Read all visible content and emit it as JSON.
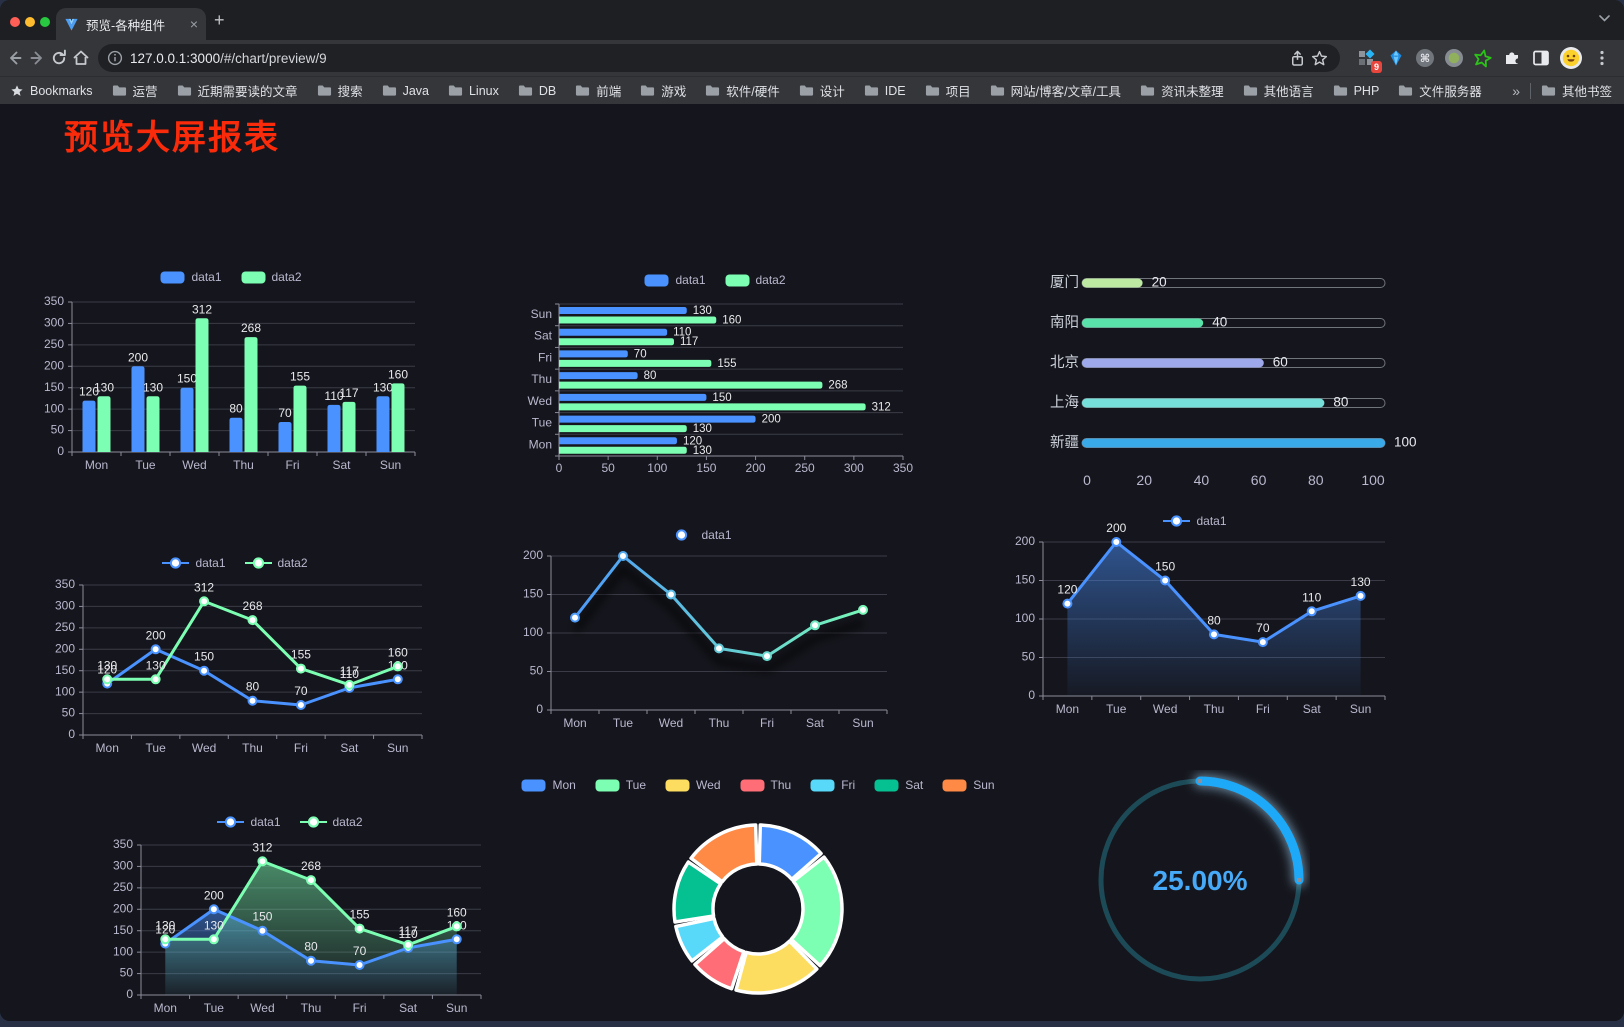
{
  "browser": {
    "tab": {
      "title": "预览-各种组件",
      "close_glyph": "×",
      "new_tab_glyph": "+"
    },
    "url": {
      "host": "127.0.0.1:3000",
      "path": "/#/chart/preview/9"
    },
    "extensions_badge": "9",
    "bookmarks": {
      "label": "Bookmarks",
      "items": [
        "运营",
        "近期需要读的文章",
        "搜索",
        "Java",
        "Linux",
        "DB",
        "前端",
        "游戏",
        "软件/硬件",
        "设计",
        "IDE",
        "项目",
        "网站/博客/文章/工具",
        "资讯未整理",
        "其他语言",
        "PHP",
        "文件服务器"
      ],
      "overflow_glyph": "»",
      "other_label": "其他书签"
    }
  },
  "page": {
    "title": "预览大屏报表",
    "title_color": "#fa2b0a"
  },
  "chart_data": [
    {
      "id": "c1",
      "type": "bar",
      "categories": [
        "Mon",
        "Tue",
        "Wed",
        "Thu",
        "Fri",
        "Sat",
        "Sun"
      ],
      "series": [
        {
          "name": "data1",
          "color": "#4992ff",
          "values": [
            120,
            200,
            150,
            80,
            70,
            110,
            130
          ]
        },
        {
          "name": "data2",
          "color": "#7cffb2",
          "values": [
            130,
            130,
            312,
            268,
            155,
            117,
            160
          ]
        }
      ],
      "ylim": [
        0,
        350
      ],
      "ystep": 50,
      "grid": true,
      "legend_position": "top",
      "labels": true
    },
    {
      "id": "c2",
      "type": "bar-horizontal",
      "categories": [
        "Mon",
        "Tue",
        "Wed",
        "Thu",
        "Fri",
        "Sat",
        "Sun"
      ],
      "series": [
        {
          "name": "data1",
          "color": "#4992ff",
          "values": [
            120,
            200,
            150,
            80,
            70,
            110,
            130
          ]
        },
        {
          "name": "data2",
          "color": "#7cffb2",
          "values": [
            130,
            130,
            312,
            268,
            155,
            117,
            160
          ]
        }
      ],
      "xlim": [
        0,
        350
      ],
      "xstep": 50,
      "grid": true,
      "legend_position": "top",
      "labels": true
    },
    {
      "id": "c3",
      "type": "progress",
      "items": [
        {
          "label": "厦门",
          "value": 20,
          "color": "#bee9a3"
        },
        {
          "label": "南阳",
          "value": 40,
          "color": "#59e3ab"
        },
        {
          "label": "北京",
          "value": 60,
          "color": "#9ea9ec"
        },
        {
          "label": "上海",
          "value": 80,
          "color": "#76dfd9"
        },
        {
          "label": "新疆",
          "value": 100,
          "color": "#3aa9e8"
        }
      ],
      "max": 100,
      "axis_ticks": [
        0,
        20,
        40,
        60,
        80,
        100
      ]
    },
    {
      "id": "c4",
      "type": "line",
      "categories": [
        "Mon",
        "Tue",
        "Wed",
        "Thu",
        "Fri",
        "Sat",
        "Sun"
      ],
      "series": [
        {
          "name": "data1",
          "color": "#4992ff",
          "values": [
            120,
            200,
            150,
            80,
            70,
            110,
            130
          ]
        },
        {
          "name": "data2",
          "color": "#7cffb2",
          "values": [
            130,
            130,
            312,
            268,
            155,
            117,
            160
          ]
        }
      ],
      "ylim": [
        0,
        350
      ],
      "ystep": 50,
      "legend_position": "top",
      "labels": true
    },
    {
      "id": "c5",
      "type": "line",
      "categories": [
        "Mon",
        "Tue",
        "Wed",
        "Thu",
        "Fri",
        "Sat",
        "Sun"
      ],
      "series": [
        {
          "name": "data1",
          "gradient": [
            "#4992ff",
            "#7cffb2"
          ],
          "values": [
            120,
            200,
            150,
            80,
            70,
            110,
            130
          ],
          "shadow": true
        }
      ],
      "ylim": [
        0,
        200
      ],
      "ystep": 50,
      "legend_position": "top",
      "labels": false
    },
    {
      "id": "c6",
      "type": "line",
      "categories": [
        "Mon",
        "Tue",
        "Wed",
        "Thu",
        "Fri",
        "Sat",
        "Sun"
      ],
      "series": [
        {
          "name": "data1",
          "color": "#4992ff",
          "values": [
            120,
            200,
            150,
            80,
            70,
            110,
            130
          ],
          "area": true
        }
      ],
      "ylim": [
        0,
        200
      ],
      "ystep": 50,
      "legend_position": "top",
      "labels": true
    },
    {
      "id": "c7",
      "type": "line",
      "categories": [
        "Mon",
        "Tue",
        "Wed",
        "Thu",
        "Fri",
        "Sat",
        "Sun"
      ],
      "series": [
        {
          "name": "data1",
          "color": "#4992ff",
          "values": [
            120,
            200,
            150,
            80,
            70,
            110,
            130
          ],
          "area": true
        },
        {
          "name": "data2",
          "color": "#7cffb2",
          "values": [
            130,
            130,
            312,
            268,
            155,
            117,
            160
          ],
          "area": true
        }
      ],
      "ylim": [
        0,
        350
      ],
      "ystep": 50,
      "legend_position": "top",
      "labels": true
    },
    {
      "id": "c8",
      "type": "pie",
      "items": [
        {
          "label": "Mon",
          "value": 120,
          "color": "#4992ff"
        },
        {
          "label": "Tue",
          "value": 200,
          "color": "#7cffb2"
        },
        {
          "label": "Wed",
          "value": 150,
          "color": "#fddd60"
        },
        {
          "label": "Thu",
          "value": 80,
          "color": "#ff6e76"
        },
        {
          "label": "Fri",
          "value": 70,
          "color": "#58d9f9"
        },
        {
          "label": "Sat",
          "value": 110,
          "color": "#05c091"
        },
        {
          "label": "Sun",
          "value": 130,
          "color": "#ff8a45"
        }
      ],
      "donut": true,
      "border_color": "#ffffff",
      "legend_position": "top"
    },
    {
      "id": "c9",
      "type": "gauge",
      "value": 25,
      "display": "25.00%",
      "color": "#1da9f7",
      "track_color": "#1d4a57",
      "text_color": "#46aaf8"
    }
  ]
}
